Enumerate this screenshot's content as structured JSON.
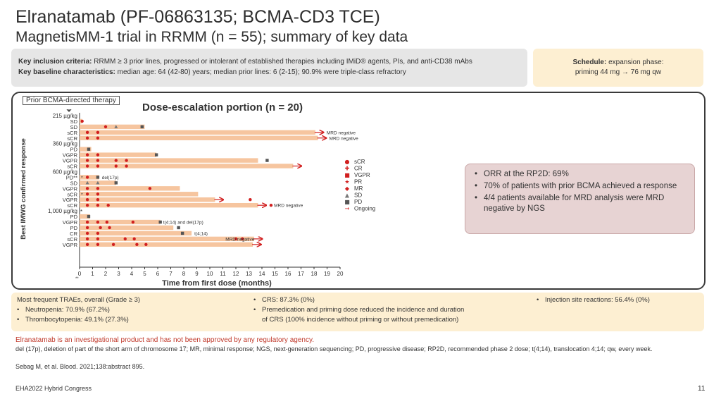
{
  "header": {
    "title": "Elranatamab (PF-06863135; BCMA-CD3 TCE)",
    "subtitle": "MagnetisMM-1 trial in RRMM (n = 55); summary of key data"
  },
  "criteria": {
    "inclusion_label": "Key inclusion criteria:",
    "inclusion_text": "RRMM ≥ 3 prior lines, progressed or intolerant of established therapies including IMiD® agents, PIs, and anti-CD38 mAbs",
    "baseline_label": "Key baseline characteristics:",
    "baseline_text": "median age: 64 (42-80) years; median prior lines: 6 (2-15); 90.9% were triple-class refractory"
  },
  "schedule": {
    "label": "Schedule:",
    "line1": "expansion phase:",
    "line2": "priming 44 mg → 76 mg qw"
  },
  "prior_label": "Prior BCMA-directed therapy",
  "dose_title": "Dose-escalation portion (n = 20)",
  "summary_bullets": [
    "ORR at the RP2D: 69%",
    "70% of patients with prior BCMA achieved a response",
    "4/4 patients available for MRD analysis were MRD negative by NGS"
  ],
  "traes": {
    "heading": "Most frequent TRAEs, overall (Grade ≥ 3)",
    "col1": [
      "Neutropenia: 70.9% (67.2%)",
      "Thrombocytopenia: 49.1% (27.3%)"
    ],
    "col2": [
      "CRS: 87.3% (0%)",
      "Premedication and priming dose reduced the incidence and duration",
      "of CRS (100% incidence without priming or without premedication)"
    ],
    "col3": [
      "Injection site reactions: 56.4% (0%)"
    ],
    "bullet": "•"
  },
  "disclaimer": "Elranatamab is an investigational product and has not been approved by any regulatory agency.",
  "footnote": "del (17p), deletion of part of the short arm of chromosome 17; MR, minimal response; NGS, next-generation sequencing; PD, progressive disease; RP2D, recommended phase 2 dose; t(4;14), translocation 4;14; qw, every week.",
  "reference": "Sebag M, et al. Blood. 2021;138:abstract 895.",
  "congress": "EHA2022 Hybrid Congress",
  "page_number": "11",
  "colors": {
    "bar": "#f6c59f",
    "marker": "#d11f1f",
    "marker_gray": "#555555",
    "accent": "#c0392b"
  },
  "chart_data": {
    "type": "swimmer",
    "title": "Dose-escalation portion (n = 20)",
    "xlabel": "Time from first dose (months)",
    "ylabel": "Best IMWG confirmed response",
    "xlim": [
      0,
      20
    ],
    "xticks": [
      "0",
      "1",
      "2",
      "3",
      "4",
      "5",
      "6",
      "7",
      "8",
      "9",
      "10",
      "11",
      "12",
      "13",
      "14",
      "15",
      "16",
      "17",
      "18",
      "19",
      "20"
    ],
    "x_star_label": "**",
    "legend": [
      {
        "symbol": "●",
        "label": "sCR",
        "color": "#d11f1f"
      },
      {
        "symbol": "✚",
        "label": "CR",
        "color": "#d11f1f"
      },
      {
        "symbol": "■",
        "label": "VGPR",
        "color": "#d11f1f"
      },
      {
        "symbol": "★",
        "label": "PR",
        "color": "#d11f1f"
      },
      {
        "symbol": "◆",
        "label": "MR",
        "color": "#d11f1f"
      },
      {
        "symbol": "▲",
        "label": "SD",
        "color": "#777777"
      },
      {
        "symbol": "■",
        "label": "PD",
        "color": "#555555"
      },
      {
        "symbol": "→",
        "label": "Ongoing",
        "color": "#d11f1f"
      }
    ],
    "rows": [
      {
        "kind": "group",
        "label": "215 µg/kg",
        "marker": ""
      },
      {
        "label": "SD",
        "end": 0.2,
        "prior": true,
        "ongoing": false,
        "note": "",
        "events": [
          [
            0.2,
            "dot"
          ]
        ]
      },
      {
        "label": "SD",
        "end": 5.0,
        "prior": false,
        "ongoing": false,
        "note": "",
        "events": [
          [
            2.0,
            "dot"
          ],
          [
            2.8,
            "tri"
          ],
          [
            4.8,
            "gsq"
          ]
        ]
      },
      {
        "label": "sCR",
        "end": 18.1,
        "prior": false,
        "ongoing": true,
        "note": "MRD negative",
        "events": [
          [
            0.6,
            "dot"
          ],
          [
            1.4,
            "dot"
          ]
        ]
      },
      {
        "label": "sCR",
        "end": 18.3,
        "prior": false,
        "ongoing": true,
        "note": "MRD negative",
        "events": [
          [
            0.6,
            "dot"
          ],
          [
            1.4,
            "dot"
          ]
        ]
      },
      {
        "kind": "group",
        "label": "360 µg/kg",
        "marker": ""
      },
      {
        "label": "PD",
        "end": 0.9,
        "prior": false,
        "ongoing": false,
        "note": "",
        "events": [
          [
            0.7,
            "gsq"
          ]
        ]
      },
      {
        "label": "VGPR",
        "end": 5.9,
        "prior": false,
        "ongoing": false,
        "note": "",
        "events": [
          [
            0.6,
            "dot"
          ],
          [
            1.4,
            "dot"
          ],
          [
            5.9,
            "gsq"
          ]
        ]
      },
      {
        "label": "VGPR",
        "end": 13.7,
        "prior": false,
        "ongoing": false,
        "note": "",
        "events": [
          [
            0.6,
            "dot"
          ],
          [
            1.4,
            "dot"
          ],
          [
            2.8,
            "dot"
          ],
          [
            3.6,
            "dot"
          ],
          [
            14.4,
            "gsq"
          ]
        ]
      },
      {
        "label": "sCR",
        "end": 16.4,
        "prior": false,
        "ongoing": true,
        "note": "",
        "events": [
          [
            0.6,
            "dot"
          ],
          [
            1.4,
            "dot"
          ],
          [
            2.8,
            "dot"
          ],
          [
            3.6,
            "dot"
          ]
        ]
      },
      {
        "kind": "group",
        "label": "600 µg/kg",
        "marker": ""
      },
      {
        "label": "PD**",
        "end": 1.5,
        "prior": true,
        "ongoing": false,
        "note": "del(17p)",
        "events": [
          [
            0.6,
            "dot"
          ],
          [
            1.4,
            "gsq"
          ]
        ]
      },
      {
        "label": "SD",
        "end": 2.8,
        "prior": false,
        "ongoing": false,
        "note": "",
        "events": [
          [
            0.6,
            "tri"
          ],
          [
            1.4,
            "tri"
          ],
          [
            2.8,
            "gsq"
          ]
        ]
      },
      {
        "label": "VGPR",
        "end": 7.7,
        "prior": false,
        "ongoing": false,
        "note": "",
        "events": [
          [
            0.6,
            "dot"
          ],
          [
            1.4,
            "dot"
          ],
          [
            5.4,
            "dot"
          ]
        ]
      },
      {
        "label": "sCR",
        "end": 9.1,
        "prior": true,
        "ongoing": false,
        "note": "",
        "events": [
          [
            0.6,
            "dot"
          ],
          [
            1.4,
            "dot"
          ]
        ]
      },
      {
        "label": "VGPR",
        "end": 10.4,
        "prior": false,
        "ongoing": true,
        "note": "",
        "events": [
          [
            0.6,
            "dot"
          ],
          [
            1.4,
            "dot"
          ],
          [
            13.1,
            "dot"
          ]
        ]
      },
      {
        "label": "sCR",
        "end": 13.7,
        "prior": false,
        "ongoing": true,
        "note": "MRD negative",
        "events": [
          [
            0.6,
            "dot"
          ],
          [
            1.4,
            "dot"
          ],
          [
            2.2,
            "dot"
          ],
          [
            14.7,
            "dot"
          ]
        ]
      },
      {
        "kind": "group",
        "label": "1,000 µg/kg",
        "marker": "*"
      },
      {
        "label": "PD",
        "end": 0.8,
        "prior": false,
        "ongoing": false,
        "note": "",
        "events": [
          [
            0.7,
            "gsq"
          ]
        ]
      },
      {
        "label": "VGPR",
        "end": 6.2,
        "prior": false,
        "ongoing": false,
        "note": "t(4;14) and del(17p)",
        "events": [
          [
            0.6,
            "dot"
          ],
          [
            1.4,
            "dot"
          ],
          [
            2.1,
            "dot"
          ],
          [
            4.1,
            "dot"
          ],
          [
            6.2,
            "gsq"
          ]
        ]
      },
      {
        "label": "PD",
        "end": 7.2,
        "prior": false,
        "ongoing": false,
        "note": "",
        "events": [
          [
            0.6,
            "dot"
          ],
          [
            1.6,
            "dot"
          ],
          [
            2.3,
            "dot"
          ],
          [
            7.6,
            "gsq"
          ]
        ]
      },
      {
        "label": "CR",
        "end": 8.6,
        "prior": false,
        "ongoing": false,
        "note": "t(4;14)",
        "events": [
          [
            0.6,
            "dot"
          ],
          [
            1.4,
            "dot"
          ],
          [
            7.9,
            "gsq"
          ]
        ]
      },
      {
        "label": "sCR",
        "end": 13.4,
        "prior": false,
        "ongoing": true,
        "note": "MRD negative",
        "events": [
          [
            0.6,
            "dot"
          ],
          [
            1.4,
            "dot"
          ],
          [
            3.5,
            "dot"
          ],
          [
            4.2,
            "dot"
          ],
          [
            12.0,
            "dot"
          ],
          [
            12.5,
            "dot"
          ]
        ]
      },
      {
        "label": "VGPR",
        "end": 13.3,
        "prior": false,
        "ongoing": true,
        "note": "",
        "events": [
          [
            0.6,
            "dot"
          ],
          [
            1.4,
            "dot"
          ],
          [
            2.6,
            "dot"
          ],
          [
            4.4,
            "dot"
          ],
          [
            5.1,
            "dot"
          ]
        ]
      }
    ]
  }
}
